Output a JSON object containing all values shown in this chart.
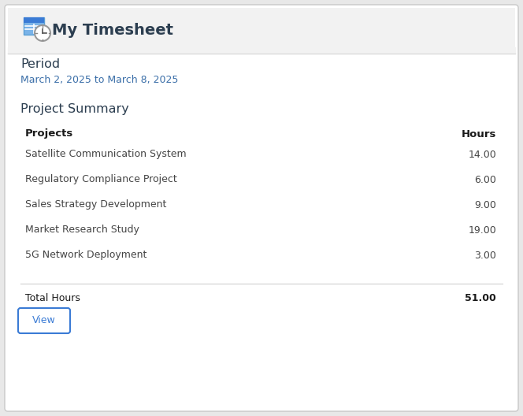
{
  "title": "My Timesheet",
  "period_label": "Period",
  "period_value": "March 2, 2025 to March 8, 2025",
  "section_title": "Project Summary",
  "col_projects": "Projects",
  "col_hours": "Hours",
  "projects": [
    {
      "name": "Satellite Communication System",
      "hours": "14.00"
    },
    {
      "name": "Regulatory Compliance Project",
      "hours": "6.00"
    },
    {
      "name": "Sales Strategy Development",
      "hours": "9.00"
    },
    {
      "name": "Market Research Study",
      "hours": "19.00"
    },
    {
      "name": "5G Network Deployment",
      "hours": "3.00"
    }
  ],
  "total_label": "Total Hours",
  "total_hours": "51.00",
  "button_label": "View",
  "bg_color": "#e8e8e8",
  "card_color": "#ffffff",
  "header_bg": "#f0f0f0",
  "header_text_color": "#2c3e50",
  "period_label_color": "#2c3e50",
  "period_value_color": "#3a6ea8",
  "section_title_color": "#2c3e50",
  "col_header_color": "#1a1a1a",
  "row_text_color": "#444444",
  "hours_text_color": "#444444",
  "total_text_color": "#1a1a1a",
  "total_hours_color": "#1a1a1a",
  "button_text_color": "#3a7bd5",
  "button_border_color": "#3a7bd5",
  "divider_color": "#d0d0d0",
  "icon_blue_dark": "#3a7bd5",
  "icon_blue_light": "#7ab3e8",
  "icon_border": "#aaaaaa"
}
